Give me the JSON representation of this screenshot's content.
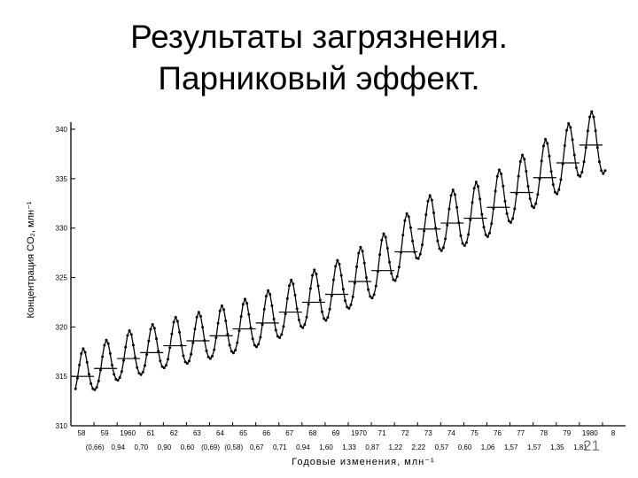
{
  "slide": {
    "title_line1": "Результаты загрязнения.",
    "title_line2": "Парниковый эффект.",
    "slide_number": "21"
  },
  "chart_data": {
    "type": "line",
    "ylabel": "Концентрация CO₂, млн⁻¹",
    "xlabel": "Годовые изменения, млн⁻¹",
    "ylim": [
      310,
      340
    ],
    "yticks": [
      310,
      315,
      320,
      325,
      330,
      335,
      340
    ],
    "xlim": [
      1958,
      1982
    ],
    "x_tick_labels": [
      "58",
      "59",
      "1960",
      "61",
      "62",
      "63",
      "64",
      "65",
      "66",
      "67",
      "68",
      "69",
      "1970",
      "71",
      "72",
      "73",
      "74",
      "75",
      "76",
      "77",
      "78",
      "79",
      "1980",
      "8"
    ],
    "annual_changes": [
      "(0,66)",
      "0,94",
      "0,70",
      "0,90",
      "0,60",
      "(0,69)",
      "(0,58)",
      "0,67",
      "0,71",
      "0,94",
      "1,60",
      "1,33",
      "0,87",
      "1,22",
      "2,22",
      "0,57",
      "0,60",
      "1,06",
      "1,57",
      "1,57",
      "1,35",
      "1,81"
    ],
    "grid": false,
    "seasonal_amplitude": [
      2.4,
      2.4,
      2.5,
      2.5,
      2.6,
      2.6,
      2.7,
      2.7,
      2.8,
      2.8,
      2.9,
      2.9,
      3.0,
      3.0,
      3.0,
      3.1,
      3.1,
      3.2,
      3.2,
      3.2,
      3.3,
      3.3,
      3.3
    ],
    "series": [
      {
        "values_description": "annual_means",
        "x": [
          1958.5,
          1959.5,
          1960.5,
          1961.5,
          1962.5,
          1963.5,
          1964.5,
          1965.5,
          1966.5,
          1967.5,
          1968.5,
          1969.5,
          1970.5,
          1971.5,
          1972.5,
          1973.5,
          1974.5,
          1975.5,
          1976.5,
          1977.5,
          1978.5,
          1979.5,
          1980.5
        ],
        "values": [
          315.0,
          315.8,
          316.8,
          317.4,
          318.1,
          318.6,
          319.1,
          319.8,
          320.4,
          321.5,
          322.5,
          323.3,
          324.6,
          325.7,
          327.6,
          329.9,
          330.5,
          331.0,
          332.1,
          333.6,
          335.1,
          336.6,
          338.4
        ]
      }
    ]
  }
}
